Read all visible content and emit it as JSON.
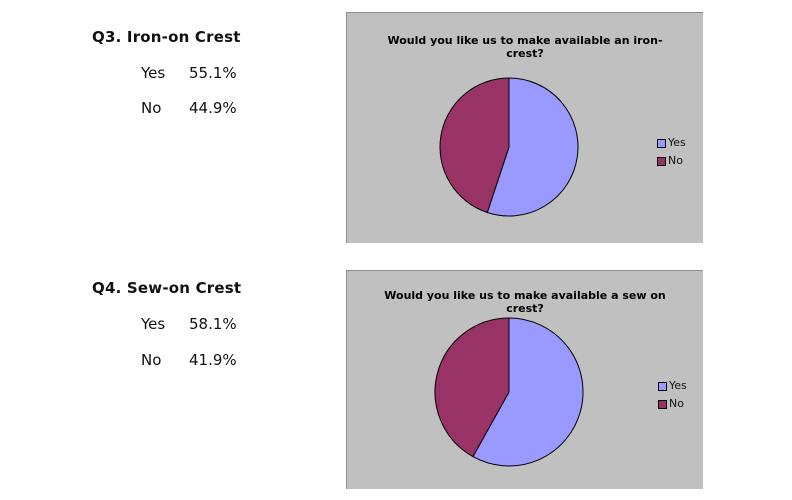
{
  "sections": [
    {
      "question": "Q3. Iron-on Crest",
      "rows": [
        {
          "label": "Yes",
          "value": "55.1%"
        },
        {
          "label": "No",
          "value": "44.9%"
        }
      ]
    },
    {
      "question": "Q4.  Sew-on Crest",
      "rows": [
        {
          "label": "Yes",
          "value": "58.1%"
        },
        {
          "label": "No",
          "value": "41.9%"
        }
      ]
    }
  ],
  "chart_data": [
    {
      "type": "pie",
      "title_lines": [
        "Would you like us to make available an iron-",
        "crest?"
      ],
      "categories": [
        "Yes",
        "No"
      ],
      "values": [
        55.1,
        44.9
      ],
      "colors": [
        "#9999ff",
        "#993366"
      ],
      "legend": "right"
    },
    {
      "type": "pie",
      "title_lines": [
        "Would you like us to make available a sew on",
        "crest?"
      ],
      "categories": [
        "Yes",
        "No"
      ],
      "values": [
        58.1,
        41.9
      ],
      "colors": [
        "#9999ff",
        "#993366"
      ],
      "legend": "right"
    }
  ]
}
